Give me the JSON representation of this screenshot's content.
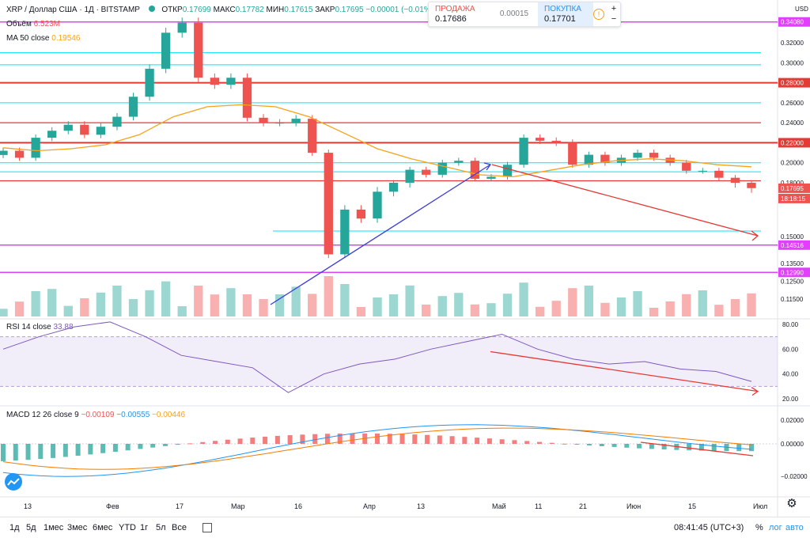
{
  "legend": {
    "symbol": "XRP / Доллар США · 1Д · BITSTAMP",
    "open_label": "ОТКР",
    "open": "0.17699",
    "high_label": "МАКС",
    "high": "0.17782",
    "low_label": "МИН",
    "low": "0.17615",
    "close_label": "ЗАКР",
    "close": "0.17695",
    "change": "−0.00001 (−0.01%)",
    "volume_label": "Объём",
    "volume": "6.523M",
    "ma_label": "MA 50 close",
    "ma": "0.19546",
    "rsi_label": "RSI 14 close",
    "rsi": "33.88",
    "macd_label": "MACD 12 26 close 9",
    "macd_1": "−0.00109",
    "macd_2": "−0.00555",
    "macd_3": "−0.00446"
  },
  "trade": {
    "sell_label": "ПРОДАЖА",
    "sell_price": "0.17686",
    "spread": "0.00015",
    "buy_label": "ПОКУПКА",
    "buy_price": "0.17701",
    "info_icon": "info-icon",
    "zoom_in": "+",
    "zoom_out": "−"
  },
  "axis": {
    "currency": "USD",
    "price_ticks": [
      "0.32000",
      "0.30000",
      "0.26000",
      "0.24000",
      "0.20000",
      "0.18000",
      "0.15000",
      "0.13500",
      "0.12500",
      "0.11500"
    ],
    "rsi_ticks": [
      "80.00",
      "60.00",
      "40.00",
      "20.00"
    ],
    "macd_ticks": [
      "0.02000",
      "0.00000",
      "−0.02000"
    ],
    "time_ticks": [
      "13",
      "Фев",
      "17",
      "Мар",
      "16",
      "Апр",
      "13",
      "Май",
      "11",
      "21",
      "Июн",
      "15",
      "Июл"
    ]
  },
  "levels": {
    "magenta": [
      "0.34080",
      "0.14516",
      "0.12990"
    ],
    "red": [
      "0.28000",
      "0.22000"
    ],
    "current_price": "0.17695",
    "countdown": "18:18:15"
  },
  "bottom": {
    "timeframes": [
      "1д",
      "5д",
      "1мес",
      "3мес",
      "6мес",
      "YTD",
      "1г",
      "5л",
      "Все"
    ],
    "time": "08:41:45 (UTC+3)",
    "percent": "%",
    "log": "лог",
    "auto": "авто"
  },
  "colors": {
    "up": "#26a69a",
    "down": "#ef5350",
    "ma": "#f7a21b",
    "rsi": "#7e57c2",
    "macd": "#2196f3",
    "signal": "#f57c00",
    "magenta": "#e040fb",
    "cyan": "#00e5ff",
    "red_level": "#e53935",
    "blue_trend": "#3f3fd6"
  },
  "chart_data": {
    "type": "candlestick",
    "series": [
      {
        "name": "XRP / Доллар США",
        "values": [
          0.212,
          0.205,
          0.225,
          0.232,
          0.238,
          0.228,
          0.236,
          0.246,
          0.266,
          0.294,
          0.33,
          0.34,
          0.285,
          0.278,
          0.285,
          0.245,
          0.24,
          0.24,
          0.244,
          0.21,
          0.14,
          0.165,
          0.16,
          0.175,
          0.18,
          0.193,
          0.188,
          0.2,
          0.202,
          0.184,
          0.186,
          0.198,
          0.225,
          0.222,
          0.22,
          0.198,
          0.208,
          0.2,
          0.205,
          0.21,
          0.205,
          0.2,
          0.192,
          0.192,
          0.185,
          0.18,
          0.177
        ]
      },
      {
        "name": "MA 50 close",
        "values": [
          0.215,
          0.212,
          0.214,
          0.218,
          0.228,
          0.246,
          0.256,
          0.258,
          0.256,
          0.246,
          0.23,
          0.214,
          0.204,
          0.196,
          0.188,
          0.186,
          0.192,
          0.198,
          0.202,
          0.204,
          0.202,
          0.198,
          0.196
        ]
      },
      {
        "name": "RSI 14 close",
        "values": [
          60,
          70,
          78,
          82,
          70,
          55,
          50,
          45,
          25,
          40,
          48,
          52,
          60,
          66,
          72,
          60,
          52,
          48,
          50,
          44,
          42,
          34
        ]
      }
    ]
  }
}
